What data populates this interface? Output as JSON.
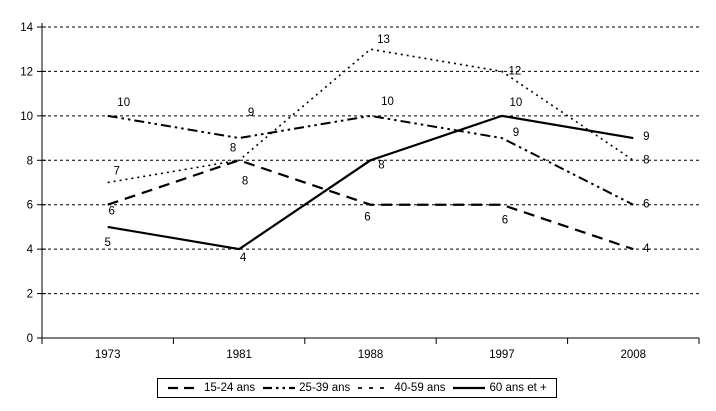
{
  "chart_data": {
    "type": "line",
    "title": "",
    "xlabel": "",
    "ylabel": "",
    "categories": [
      "1973",
      "1981",
      "1988",
      "1997",
      "2008"
    ],
    "series": [
      {
        "name": "15-24 ans",
        "line_style": "long-dash",
        "values": [
          6,
          8,
          6,
          6,
          4
        ],
        "label_offsets": [
          [
            4,
            6
          ],
          [
            6,
            20
          ],
          [
            -3,
            12
          ],
          [
            3,
            15
          ],
          [
            13,
            -1
          ]
        ]
      },
      {
        "name": "25-39 ans",
        "line_style": "dash-dot-dot",
        "values": [
          10,
          9,
          10,
          9,
          6
        ],
        "label_offsets": [
          [
            16,
            -14
          ],
          [
            12,
            -26
          ],
          [
            17,
            -15
          ],
          [
            14,
            -6
          ],
          [
            13,
            -1
          ]
        ]
      },
      {
        "name": "40-59 ans",
        "line_style": "dotted",
        "values": [
          7,
          8,
          13,
          12,
          8
        ],
        "label_offsets": [
          [
            9,
            -12
          ],
          [
            -6,
            -13
          ],
          [
            13,
            -10
          ],
          [
            13,
            -1
          ],
          [
            13,
            -1
          ]
        ]
      },
      {
        "name": "60 ans et +",
        "line_style": "solid",
        "values": [
          5,
          4,
          8,
          10,
          9
        ],
        "label_offsets": [
          [
            0,
            15
          ],
          [
            4,
            8
          ],
          [
            11,
            4
          ],
          [
            14,
            -14
          ],
          [
            13,
            -2
          ]
        ]
      }
    ],
    "ylim": [
      0,
      14
    ],
    "yticks": [
      0,
      2,
      4,
      6,
      8,
      10,
      12,
      14
    ],
    "grid": "horizontal-dashed",
    "data_labels": true,
    "legend_position": "bottom-center",
    "colors": {
      "line": "#000000",
      "text": "#000000",
      "grid": "#000000",
      "background": "#ffffff"
    }
  }
}
